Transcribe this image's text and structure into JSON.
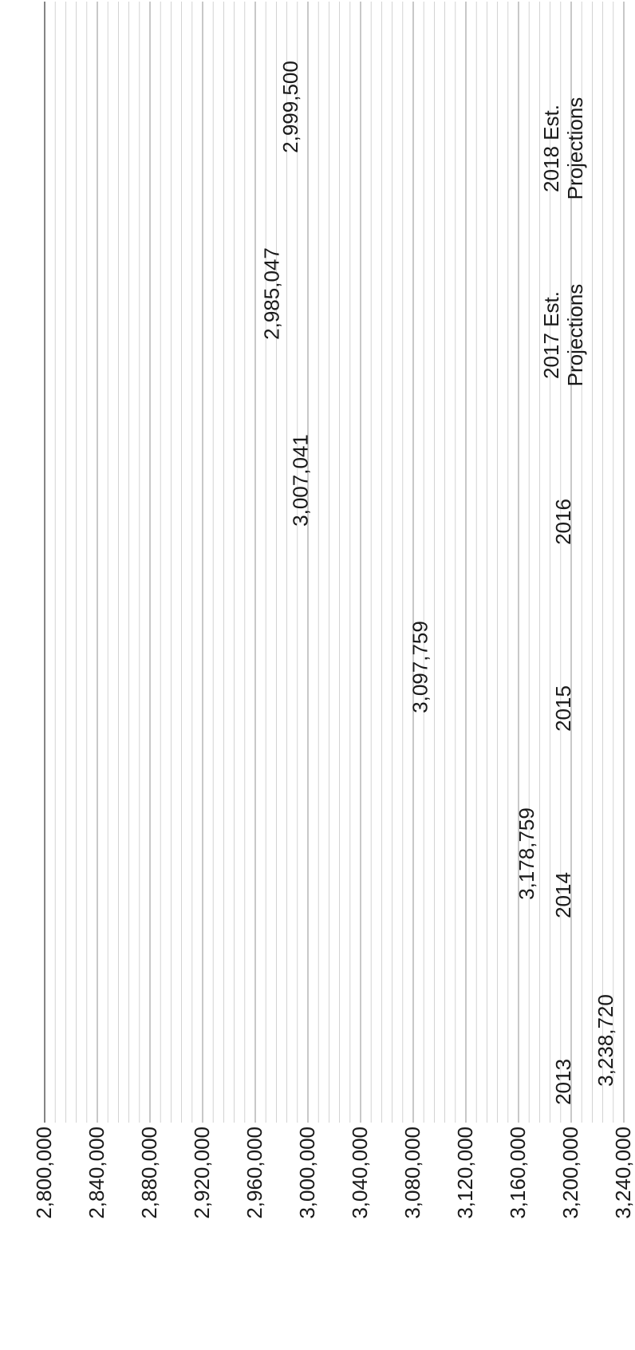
{
  "chart_data": {
    "type": "bar",
    "orientation": "vertical",
    "title": "",
    "xlabel": "",
    "ylabel": "",
    "categories": [
      "2013",
      "2014",
      "2015",
      "2016",
      "2017 Est. Projections",
      "2018 Est. Projections"
    ],
    "category_lines": [
      [
        "2013"
      ],
      [
        "2014"
      ],
      [
        "2015"
      ],
      [
        "2016"
      ],
      [
        "2017 Est.",
        "Projections"
      ],
      [
        "2018 Est.",
        "Projections"
      ]
    ],
    "values": [
      3238720,
      3178759,
      3097759,
      3007041,
      2985047,
      2999500
    ],
    "value_labels": [
      "3,238,720",
      "3,178,759",
      "3,097,759",
      "3,007,041",
      "2,985,047",
      "2,999,500"
    ],
    "ylim": [
      2800000,
      3240000
    ],
    "yticks": [
      2800000,
      2840000,
      2880000,
      2920000,
      2960000,
      3000000,
      3040000,
      3080000,
      3120000,
      3160000,
      3200000,
      3240000
    ],
    "ytick_labels": [
      "2,800,000",
      "2,840,000",
      "2,880,000",
      "2,920,000",
      "2,960,000",
      "3,000,000",
      "3,040,000",
      "3,080,000",
      "3,120,000",
      "3,160,000",
      "3,200,000",
      "3,240,000"
    ],
    "grid": true,
    "bar_color": "#ED7D31",
    "grid_color": "#c8c8c8"
  }
}
